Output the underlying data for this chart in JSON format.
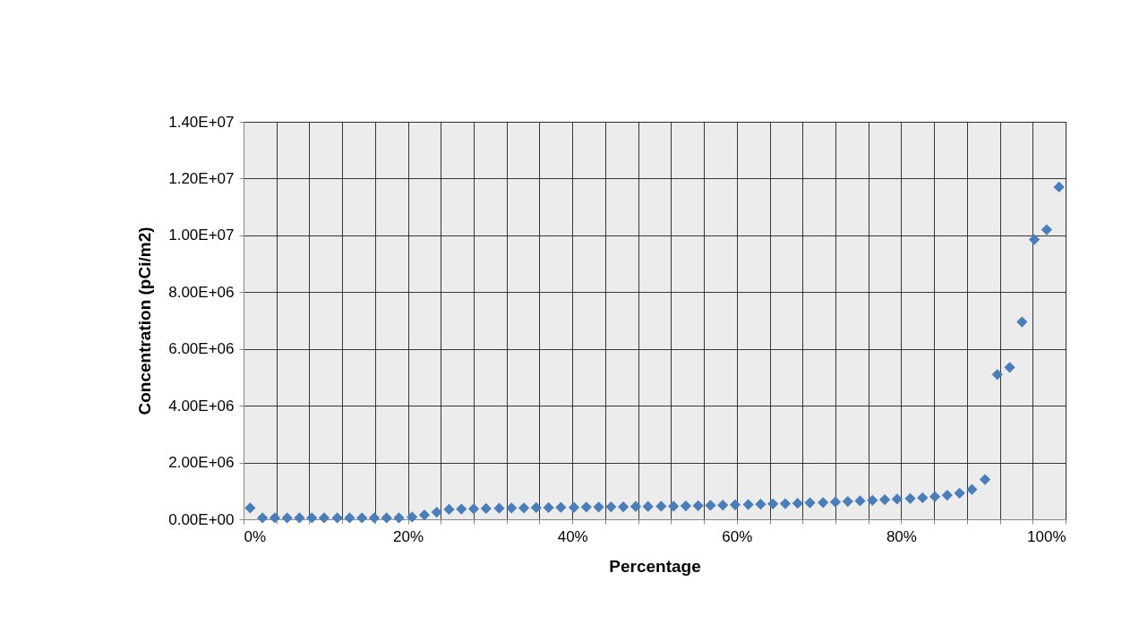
{
  "chart_data": {
    "type": "scatter",
    "xlabel": "Percentage",
    "ylabel": "Concentration (pCi/m2)",
    "x": [
      0.8,
      2.3,
      3.8,
      5.3,
      6.8,
      8.3,
      9.8,
      11.4,
      12.9,
      14.4,
      15.9,
      17.4,
      18.9,
      20.5,
      22.0,
      23.5,
      25.0,
      26.5,
      28.0,
      29.5,
      31.1,
      32.6,
      34.1,
      35.6,
      37.1,
      38.6,
      40.2,
      41.7,
      43.2,
      44.7,
      46.2,
      47.7,
      49.2,
      50.8,
      52.3,
      53.8,
      55.3,
      56.8,
      58.3,
      59.8,
      61.4,
      62.9,
      64.4,
      65.9,
      67.4,
      68.9,
      70.5,
      72.0,
      73.5,
      75.0,
      76.5,
      78.0,
      79.5,
      81.1,
      82.6,
      84.1,
      85.6,
      87.1,
      88.6,
      90.2,
      91.7,
      93.2,
      94.7,
      96.2,
      97.7,
      99.2
    ],
    "series": [
      {
        "color": "#4a7ebb",
        "values": [
          400000,
          50000,
          50000,
          50000,
          50000,
          50000,
          50000,
          50000,
          50000,
          50000,
          50000,
          50000,
          50000,
          80000,
          150000,
          250000,
          350000,
          360000,
          370000,
          380000,
          390000,
          400000,
          400000,
          410000,
          410000,
          420000,
          420000,
          430000,
          430000,
          440000,
          440000,
          450000,
          450000,
          460000,
          460000,
          470000,
          480000,
          490000,
          500000,
          510000,
          520000,
          530000,
          540000,
          550000,
          560000,
          580000,
          590000,
          610000,
          630000,
          650000,
          670000,
          690000,
          710000,
          730000,
          760000,
          800000,
          850000,
          920000,
          1050000,
          1400000,
          5100000,
          5350000,
          6950000,
          9850000,
          10200000,
          11700000
        ]
      }
    ],
    "xlim": [
      0,
      100
    ],
    "xticks": [
      {
        "value": 0,
        "label": "0%"
      },
      {
        "value": 4,
        "label": null
      },
      {
        "value": 8,
        "label": null
      },
      {
        "value": 12,
        "label": null
      },
      {
        "value": 16,
        "label": null
      },
      {
        "value": 20,
        "label": "20%"
      },
      {
        "value": 24,
        "label": null
      },
      {
        "value": 28,
        "label": null
      },
      {
        "value": 32,
        "label": null
      },
      {
        "value": 36,
        "label": null
      },
      {
        "value": 40,
        "label": "40%"
      },
      {
        "value": 44,
        "label": null
      },
      {
        "value": 48,
        "label": null
      },
      {
        "value": 52,
        "label": null
      },
      {
        "value": 56,
        "label": null
      },
      {
        "value": 60,
        "label": "60%"
      },
      {
        "value": 64,
        "label": null
      },
      {
        "value": 68,
        "label": null
      },
      {
        "value": 72,
        "label": null
      },
      {
        "value": 76,
        "label": null
      },
      {
        "value": 80,
        "label": "80%"
      },
      {
        "value": 84,
        "label": null
      },
      {
        "value": 88,
        "label": null
      },
      {
        "value": 92,
        "label": null
      },
      {
        "value": 96,
        "label": null
      },
      {
        "value": 100,
        "label": "100%"
      }
    ],
    "ylim": [
      0,
      14000000
    ],
    "yticks": [
      {
        "value": 0,
        "label": "0.00E+00"
      },
      {
        "value": 2000000,
        "label": "2.00E+06"
      },
      {
        "value": 4000000,
        "label": "4.00E+06"
      },
      {
        "value": 6000000,
        "label": "6.00E+06"
      },
      {
        "value": 8000000,
        "label": "8.00E+06"
      },
      {
        "value": 10000000,
        "label": "1.00E+07"
      },
      {
        "value": 12000000,
        "label": "1.20E+07"
      },
      {
        "value": 14000000,
        "label": "1.40E+07"
      }
    ],
    "grid": true,
    "legend": false,
    "marker": "diamond"
  }
}
